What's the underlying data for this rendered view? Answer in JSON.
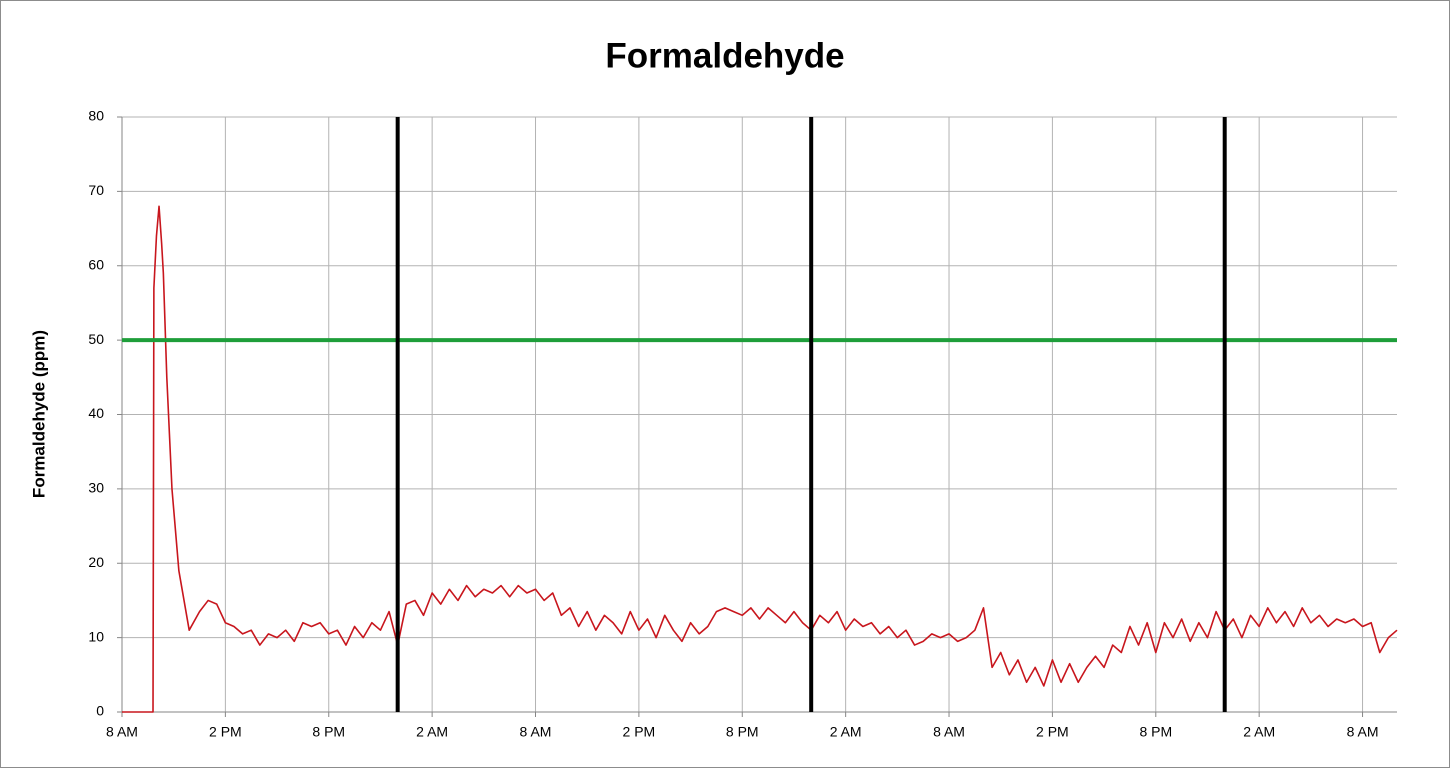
{
  "chart_data": {
    "type": "line",
    "title": "Formaldehyde",
    "y_label": "Formaldehyde (ppm)",
    "grid": true,
    "xlim": [
      0,
      74
    ],
    "xticks": [
      {
        "value": 0,
        "label": "8 AM"
      },
      {
        "value": 6,
        "label": "2 PM"
      },
      {
        "value": 12,
        "label": "8 PM"
      },
      {
        "value": 18,
        "label": "2 AM"
      },
      {
        "value": 24,
        "label": "8 AM"
      },
      {
        "value": 30,
        "label": "2 PM"
      },
      {
        "value": 36,
        "label": "8 PM"
      },
      {
        "value": 42,
        "label": "2 AM"
      },
      {
        "value": 48,
        "label": "8 AM"
      },
      {
        "value": 54,
        "label": "2 PM"
      },
      {
        "value": 60,
        "label": "8 PM"
      },
      {
        "value": 66,
        "label": "2 AM"
      },
      {
        "value": 72,
        "label": "8 AM"
      }
    ],
    "ylim": [
      0,
      80
    ],
    "yticks": [
      0,
      10,
      20,
      30,
      40,
      50,
      60,
      70,
      80
    ],
    "hlines": [
      {
        "value": 50,
        "color": "#1e9e3a"
      }
    ],
    "vlines": [
      {
        "value": 16,
        "color": "#000000"
      },
      {
        "value": 40,
        "color": "#000000"
      },
      {
        "value": 64,
        "color": "#000000"
      }
    ],
    "series": [
      {
        "color": "#c8161d",
        "x": [
          0,
          1.8,
          1.85,
          2.0,
          2.15,
          2.3,
          2.4,
          2.6,
          2.9,
          3.3,
          3.9,
          4.5,
          5,
          5.5,
          6,
          6.5,
          7,
          7.5,
          8,
          8.5,
          9,
          9.5,
          10,
          10.5,
          11,
          11.5,
          12,
          12.5,
          13,
          13.5,
          14,
          14.5,
          15,
          15.5,
          16,
          16.5,
          17,
          17.5,
          18,
          18.5,
          19,
          19.5,
          20,
          20.5,
          21,
          21.5,
          22,
          22.5,
          23,
          23.5,
          24,
          24.5,
          25,
          25.5,
          26,
          26.5,
          27,
          27.5,
          28,
          28.5,
          29,
          29.5,
          30,
          30.5,
          31,
          31.5,
          32,
          32.5,
          33,
          33.5,
          34,
          34.5,
          35,
          35.5,
          36,
          36.5,
          37,
          37.5,
          38,
          38.5,
          39,
          39.5,
          40,
          40.5,
          41,
          41.5,
          42,
          42.5,
          43,
          43.5,
          44,
          44.5,
          45,
          45.5,
          46,
          46.5,
          47,
          47.5,
          48,
          48.5,
          49,
          49.5,
          50,
          50.5,
          51,
          51.5,
          52,
          52.5,
          53,
          53.5,
          54,
          54.5,
          55,
          55.5,
          56,
          56.5,
          57,
          57.5,
          58,
          58.5,
          59,
          59.5,
          60,
          60.5,
          61,
          61.5,
          62,
          62.5,
          63,
          63.5,
          64,
          64.5,
          65,
          65.5,
          66,
          66.5,
          67,
          67.5,
          68,
          68.5,
          69,
          69.5,
          70,
          70.5,
          71,
          71.5,
          72,
          72.5,
          73,
          73.5,
          74
        ],
        "values": [
          0,
          0,
          57,
          64,
          68,
          63,
          59,
          45,
          30,
          19,
          11,
          13.5,
          15,
          14.5,
          12,
          11.5,
          10.5,
          11,
          9,
          10.5,
          10,
          11,
          9.5,
          12,
          11.5,
          12,
          10.5,
          11,
          9,
          11.5,
          10,
          12,
          11,
          13.5,
          9,
          14.5,
          15,
          13,
          16,
          14.5,
          16.5,
          15,
          17,
          15.5,
          16.5,
          16,
          17,
          15.5,
          17,
          16,
          16.5,
          15,
          16,
          13,
          14,
          11.5,
          13.5,
          11,
          13,
          12,
          10.5,
          13.5,
          11,
          12.5,
          10,
          13,
          11,
          9.5,
          12,
          10.5,
          11.5,
          13.5,
          14,
          13.5,
          13,
          14,
          12.5,
          14,
          13,
          12,
          13.5,
          12,
          11,
          13,
          12,
          13.5,
          11,
          12.5,
          11.5,
          12,
          10.5,
          11.5,
          10,
          11,
          9,
          9.5,
          10.5,
          10,
          10.5,
          9.5,
          10,
          11,
          14,
          6,
          8,
          5,
          7,
          4,
          6,
          3.5,
          7,
          4,
          6.5,
          4,
          6,
          7.5,
          6,
          9,
          8,
          11.5,
          9,
          12,
          8,
          12,
          10,
          12.5,
          9.5,
          12,
          10,
          13.5,
          11,
          12.5,
          10,
          13,
          11.5,
          14,
          12,
          13.5,
          11.5,
          14,
          12,
          13,
          11.5,
          12.5,
          12,
          12.5,
          11.5,
          12,
          8,
          10,
          11
        ]
      }
    ]
  }
}
